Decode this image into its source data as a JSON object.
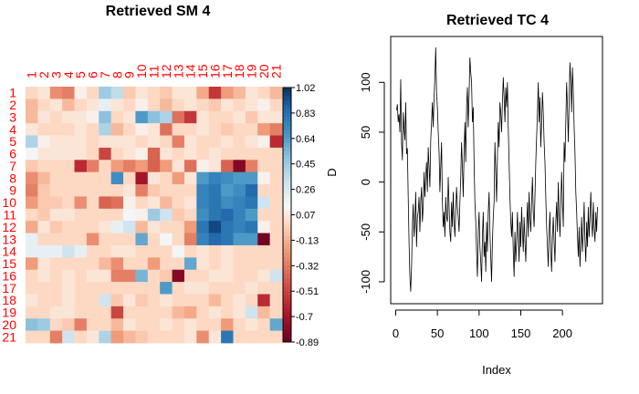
{
  "chart_data": [
    {
      "type": "heatmap",
      "title": "Retrieved SM  4",
      "row_labels": [
        "1",
        "2",
        "3",
        "4",
        "5",
        "6",
        "7",
        "8",
        "9",
        "10",
        "11",
        "12",
        "13",
        "14",
        "15",
        "16",
        "17",
        "18",
        "19",
        "20",
        "21"
      ],
      "col_labels": [
        "1",
        "2",
        "3",
        "4",
        "5",
        "6",
        "7",
        "8",
        "9",
        "10",
        "11",
        "12",
        "13",
        "14",
        "15",
        "16",
        "17",
        "18",
        "19",
        "20",
        "21"
      ],
      "colorbar_label": "D",
      "colorbar_ticks": [
        "1.02",
        "0.83",
        "0.64",
        "0.45",
        "0.26",
        "0.07",
        "-0.13",
        "-0.32",
        "-0.51",
        "-0.7",
        "-0.89"
      ],
      "zlim": [
        -0.89,
        1.02
      ],
      "values": [
        [
          0.0,
          0.05,
          -0.25,
          -0.3,
          0.1,
          0.0,
          0.45,
          0.35,
          -0.05,
          0.05,
          0.0,
          -0.05,
          0.05,
          0.05,
          -0.15,
          -0.55,
          -0.2,
          -0.1,
          0.05,
          0.0,
          -0.1
        ],
        [
          -0.1,
          0.0,
          0.05,
          -0.1,
          0.0,
          0.05,
          0.2,
          0.05,
          0.0,
          0.1,
          0.0,
          -0.1,
          0.0,
          0.05,
          0.0,
          -0.05,
          0.05,
          0.0,
          0.05,
          0.1,
          0.0
        ],
        [
          -0.1,
          0.05,
          0.0,
          0.05,
          0.05,
          0.1,
          0.5,
          0.0,
          0.05,
          0.65,
          0.5,
          0.4,
          -0.35,
          -0.55,
          0.05,
          0.0,
          0.0,
          0.05,
          -0.05,
          0.05,
          0.05
        ],
        [
          0.05,
          0.0,
          0.0,
          0.0,
          0.05,
          0.0,
          0.4,
          -0.1,
          0.0,
          0.1,
          0.05,
          -0.35,
          0.0,
          0.0,
          0.05,
          0.0,
          -0.05,
          0.0,
          0.0,
          -0.2,
          -0.3
        ],
        [
          0.4,
          0.1,
          0.05,
          0.05,
          0.05,
          0.0,
          0.05,
          0.05,
          0.05,
          0.0,
          0.05,
          0.0,
          -0.3,
          0.05,
          0.0,
          0.0,
          0.05,
          0.0,
          0.05,
          0.1,
          -0.6
        ],
        [
          0.15,
          0.05,
          0.05,
          0.05,
          0.05,
          0.0,
          -0.5,
          0.0,
          0.05,
          0.1,
          -0.4,
          0.05,
          0.0,
          0.05,
          0.0,
          0.05,
          0.0,
          0.0,
          0.0,
          0.0,
          0.0
        ],
        [
          -0.05,
          0.0,
          0.0,
          0.0,
          -0.6,
          -0.3,
          0.0,
          -0.2,
          -0.3,
          -0.2,
          -0.4,
          -0.2,
          0.05,
          -0.35,
          0.1,
          0.05,
          -0.4,
          -0.8,
          -0.3,
          0.0,
          0.0
        ],
        [
          -0.25,
          -0.1,
          0.0,
          0.0,
          0.0,
          0.0,
          0.0,
          0.7,
          0.0,
          -0.7,
          0.05,
          0.0,
          -0.2,
          0.05,
          0.65,
          0.75,
          0.7,
          0.65,
          0.65,
          0.1,
          0.0
        ],
        [
          -0.3,
          -0.05,
          0.0,
          0.0,
          0.0,
          0.0,
          0.0,
          0.0,
          0.05,
          -0.3,
          -0.05,
          0.0,
          0.0,
          0.0,
          0.75,
          0.8,
          0.65,
          0.7,
          0.85,
          0.0,
          0.0
        ],
        [
          -0.2,
          -0.05,
          -0.05,
          0.0,
          -0.25,
          0.0,
          -0.4,
          -0.35,
          0.1,
          0.0,
          0.05,
          -0.1,
          0.0,
          0.05,
          0.75,
          0.8,
          0.7,
          0.75,
          0.8,
          0.3,
          0.0
        ],
        [
          0.0,
          -0.05,
          0.05,
          0.05,
          0.0,
          0.0,
          0.0,
          0.0,
          0.15,
          0.1,
          0.45,
          0.3,
          -0.05,
          0.0,
          0.7,
          0.8,
          0.85,
          0.75,
          0.65,
          0.0,
          0.0
        ],
        [
          -0.15,
          0.05,
          -0.05,
          0.0,
          0.0,
          0.0,
          0.05,
          0.2,
          0.3,
          -0.1,
          0.05,
          0.0,
          0.0,
          -0.2,
          0.8,
          0.95,
          0.8,
          0.75,
          0.8,
          0.1,
          0.0
        ],
        [
          0.2,
          0.0,
          0.0,
          0.0,
          0.0,
          -0.25,
          0.0,
          0.0,
          0.0,
          0.6,
          0.0,
          0.15,
          0.0,
          -0.3,
          0.75,
          0.85,
          0.8,
          0.65,
          0.65,
          -0.85,
          0.0
        ],
        [
          0.2,
          0.2,
          0.2,
          0.3,
          0.2,
          0.0,
          0.0,
          0.05,
          0.05,
          0.0,
          0.0,
          0.0,
          0.15,
          0.0,
          0.05,
          0.0,
          0.05,
          0.0,
          0.0,
          0.0,
          0.0
        ],
        [
          -0.2,
          0.05,
          0.0,
          0.0,
          0.0,
          0.0,
          -0.1,
          -0.25,
          0.0,
          0.0,
          -0.2,
          0.0,
          0.0,
          0.6,
          0.05,
          0.0,
          0.05,
          0.0,
          0.0,
          0.0,
          0.0
        ],
        [
          0.0,
          0.05,
          0.0,
          0.05,
          0.0,
          0.05,
          0.05,
          -0.3,
          -0.3,
          0.55,
          0.0,
          -0.05,
          -0.8,
          0.0,
          0.0,
          0.05,
          0.05,
          0.0,
          0.0,
          0.05,
          0.3
        ],
        [
          0.0,
          0.0,
          0.0,
          0.05,
          0.0,
          0.0,
          0.0,
          0.0,
          0.0,
          0.0,
          0.0,
          0.65,
          0.0,
          0.05,
          0.05,
          0.0,
          0.0,
          0.0,
          0.05,
          0.0,
          0.0
        ],
        [
          0.05,
          0.0,
          0.0,
          0.05,
          0.0,
          0.0,
          0.3,
          -0.05,
          0.05,
          -0.05,
          0.0,
          0.05,
          0.0,
          0.0,
          0.0,
          -0.1,
          0.0,
          0.05,
          0.0,
          -0.6,
          0.0
        ],
        [
          0.0,
          0.0,
          0.05,
          0.05,
          0.0,
          0.0,
          0.0,
          -0.5,
          0.0,
          0.0,
          0.0,
          0.0,
          -0.1,
          -0.15,
          0.0,
          0.05,
          0.0,
          0.05,
          0.3,
          -0.1,
          0.0
        ],
        [
          0.5,
          0.45,
          0.0,
          -0.05,
          -0.3,
          0.0,
          0.0,
          -0.1,
          0.05,
          0.0,
          0.0,
          0.05,
          0.0,
          0.05,
          0.0,
          0.0,
          -0.2,
          0.0,
          0.05,
          0.0,
          0.6
        ],
        [
          0.0,
          0.0,
          -0.3,
          0.3,
          0.0,
          0.05,
          0.4,
          -0.2,
          -0.1,
          -0.05,
          0.0,
          0.0,
          0.0,
          0.05,
          -0.25,
          0.05,
          0.8,
          0.0,
          0.0,
          0.0,
          0.0
        ]
      ]
    },
    {
      "type": "line",
      "title": "Retrieved TC   4",
      "xlabel": "Index",
      "ylabel": "",
      "xlim": [
        -6,
        248
      ],
      "ylim": [
        -122,
        146
      ],
      "xticks": [
        "0",
        "50",
        "100",
        "150",
        "200"
      ],
      "yticks": [
        "-100",
        "-50",
        "0",
        "50",
        "100"
      ],
      "x_start": 1,
      "y": [
        72,
        78,
        60,
        68,
        50,
        103,
        40,
        22,
        70,
        55,
        42,
        80,
        28,
        34,
        -15,
        -60,
        -95,
        -110,
        -85,
        -45,
        -22,
        -55,
        -40,
        -10,
        -65,
        -35,
        -30,
        -15,
        -50,
        -20,
        -5,
        -40,
        -25,
        10,
        -15,
        5,
        20,
        -10,
        35,
        15,
        -5,
        42,
        60,
        80,
        55,
        85,
        105,
        135,
        90,
        75,
        50,
        30,
        -10,
        15,
        40,
        -20,
        -45,
        -30,
        -55,
        -15,
        -35,
        -40,
        5,
        -25,
        -50,
        -60,
        -20,
        -45,
        -10,
        -40,
        -55,
        -30,
        -5,
        -25,
        -35,
        -50,
        -20,
        5,
        40,
        15,
        -15,
        30,
        60,
        20,
        75,
        95,
        55,
        88,
        125,
        110,
        100,
        60,
        75,
        20,
        -20,
        -40,
        -70,
        -95,
        -50,
        -30,
        -65,
        -80,
        -100,
        -55,
        -30,
        -75,
        -60,
        -90,
        -40,
        -70,
        -30,
        -10,
        -50,
        -75,
        -100,
        -60,
        -35,
        -20,
        40,
        10,
        -20,
        25,
        60,
        35,
        80,
        70,
        50,
        80,
        105,
        85,
        60,
        95,
        75,
        100,
        55,
        20,
        -15,
        -40,
        -55,
        -30,
        -70,
        -95,
        -50,
        -80,
        -60,
        -30,
        -55,
        -80,
        -40,
        -65,
        -25,
        -50,
        -70,
        -35,
        -60,
        -80,
        -45,
        -20,
        -55,
        -10,
        -35,
        -50,
        -20,
        5,
        -30,
        -45,
        -15,
        20,
        45,
        70,
        100,
        60,
        85,
        35,
        60,
        90,
        70,
        40,
        20,
        -15,
        -45,
        -65,
        -85,
        -50,
        -30,
        -70,
        -90,
        -55,
        -35,
        -60,
        -80,
        -40,
        -20,
        -50,
        0,
        -30,
        -55,
        -25,
        10,
        -20,
        -45,
        40,
        20,
        60,
        100,
        75,
        40,
        80,
        120,
        100,
        70,
        115,
        90,
        55,
        30,
        -10,
        -30,
        -55,
        -75,
        -45,
        -85,
        -60,
        -35,
        -70,
        -50,
        -20,
        -60,
        -80,
        -40,
        -65,
        -25,
        -55,
        -35,
        -10,
        -40,
        -55,
        -20,
        -45,
        -60,
        -30,
        -50,
        -25
      ]
    }
  ]
}
